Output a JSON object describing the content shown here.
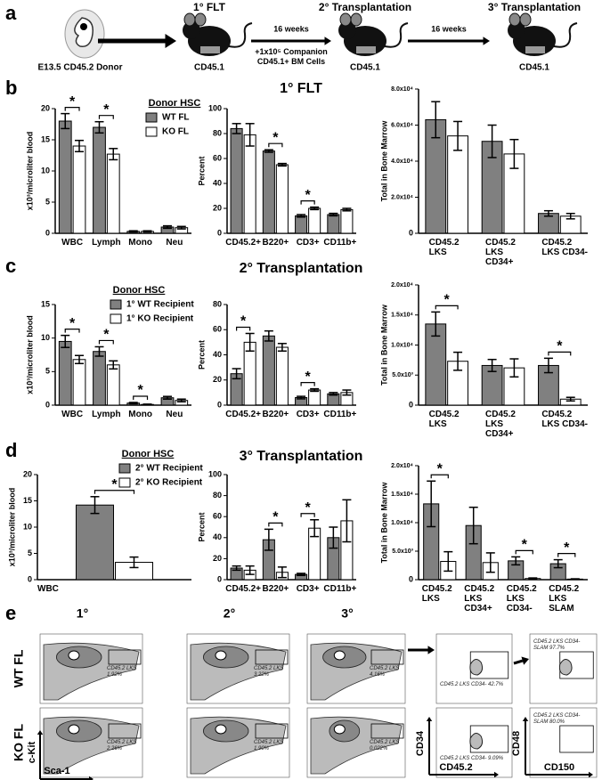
{
  "panel_a": {
    "letter": "a",
    "donor": "E13.5 CD45.2 Donor",
    "steps": [
      {
        "title": "1° FLT",
        "strain": "CD45.1"
      },
      {
        "title": "2° Transplantation",
        "strain": "CD45.1"
      },
      {
        "title": "3° Transplantation",
        "strain": "CD45.1"
      }
    ],
    "arrows": [
      {
        "above": "16 weeks",
        "below": "+1x10⁵ Companion CD45.1+ BM Cells"
      },
      {
        "above": "16 weeks"
      }
    ]
  },
  "chart_data": [
    {
      "type": "bar",
      "panel": "b",
      "legend_title": "Donor HSC",
      "ylabel": "x10³/microliter blood",
      "categories": [
        "WBC",
        "Lymph",
        "Mono",
        "Neu"
      ],
      "series": [
        {
          "name": "WT FL",
          "color": "#808080",
          "values": [
            18,
            17,
            0.3,
            1.0
          ],
          "errors": [
            1.2,
            0.9,
            0.1,
            0.2
          ]
        },
        {
          "name": "KO FL",
          "color": "#ffffff",
          "values": [
            14,
            12.7,
            0.3,
            0.9
          ],
          "errors": [
            0.9,
            0.9,
            0.1,
            0.2
          ]
        }
      ],
      "significance": [
        "*",
        "*",
        null,
        null
      ],
      "ylim": [
        0,
        20
      ],
      "yticks": [
        0,
        5,
        10,
        15,
        20
      ]
    },
    {
      "type": "bar",
      "title": "1° FLT",
      "ylabel": "Percent",
      "categories": [
        "CD45.2+",
        "B220+",
        "CD3+",
        "CD11b+"
      ],
      "series": [
        {
          "color": "#808080",
          "values": [
            84,
            66,
            14,
            15
          ],
          "errors": [
            4,
            1,
            1,
            1
          ]
        },
        {
          "color": "#ffffff",
          "values": [
            79,
            55,
            20,
            19
          ],
          "errors": [
            9,
            1,
            1,
            1
          ]
        }
      ],
      "significance": [
        null,
        "*",
        "*",
        null
      ],
      "ylim": [
        0,
        100
      ],
      "yticks": [
        0,
        20,
        40,
        60,
        80,
        100
      ]
    },
    {
      "type": "bar",
      "ylabel": "Total in Bone Marrow",
      "categories": [
        "CD45.2 LKS",
        "CD45.2 LKS CD34+",
        "CD45.2 LKS CD34-"
      ],
      "series": [
        {
          "color": "#808080",
          "values": [
            63000,
            51000,
            11000
          ],
          "errors": [
            10000,
            9000,
            1500
          ]
        },
        {
          "color": "#ffffff",
          "values": [
            54000,
            44000,
            9500
          ],
          "errors": [
            8000,
            8000,
            1500
          ]
        }
      ],
      "significance": [
        null,
        null,
        null
      ],
      "ylim": [
        0,
        80000
      ],
      "yticks": [
        0,
        {
          "value": 20000,
          "label": "2.0x10⁴"
        },
        {
          "value": 40000,
          "label": "4.0x10⁴"
        },
        {
          "value": 60000,
          "label": "6.0x10⁴"
        },
        {
          "value": 80000,
          "label": "8.0x10⁴"
        }
      ]
    },
    {
      "type": "bar",
      "panel": "c",
      "legend_title": "Donor HSC",
      "ylabel": "x10³/microliter blood",
      "categories": [
        "WBC",
        "Lymph",
        "Mono",
        "Neu"
      ],
      "series": [
        {
          "name": "1° WT Recipient",
          "color": "#808080",
          "values": [
            9.5,
            8,
            0.3,
            1.1
          ],
          "errors": [
            0.9,
            0.7,
            0.1,
            0.2
          ]
        },
        {
          "name": "1° KO Recipient",
          "color": "#ffffff",
          "values": [
            6.8,
            6,
            0.1,
            0.7
          ],
          "errors": [
            0.6,
            0.6,
            0.05,
            0.2
          ]
        }
      ],
      "significance": [
        "*",
        "*",
        "*",
        null
      ],
      "ylim": [
        0,
        15
      ],
      "yticks": [
        0,
        5,
        10,
        15
      ]
    },
    {
      "type": "bar",
      "title": "2° Transplantation",
      "ylabel": "Percent",
      "categories": [
        "CD45.2+",
        "B220+",
        "CD3+",
        "CD11b+"
      ],
      "series": [
        {
          "color": "#808080",
          "values": [
            25,
            55,
            6,
            9
          ],
          "errors": [
            4,
            4,
            1,
            1
          ]
        },
        {
          "color": "#ffffff",
          "values": [
            50,
            46,
            12,
            10
          ],
          "errors": [
            7,
            3,
            1,
            2
          ]
        }
      ],
      "significance": [
        "*",
        null,
        "*",
        null
      ],
      "ylim": [
        0,
        80
      ],
      "yticks": [
        0,
        20,
        40,
        60,
        80
      ]
    },
    {
      "type": "bar",
      "ylabel": "Total in Bone Marrow",
      "categories": [
        "CD45.2 LKS",
        "CD45.2 LKS CD34+",
        "CD45.2 LKS CD34-"
      ],
      "series": [
        {
          "color": "#808080",
          "values": [
            13500,
            6600,
            6600
          ],
          "errors": [
            2000,
            1000,
            1200
          ]
        },
        {
          "color": "#ffffff",
          "values": [
            7300,
            6200,
            1000
          ],
          "errors": [
            1500,
            1500,
            300
          ]
        }
      ],
      "significance": [
        "*",
        null,
        "*"
      ],
      "ylim": [
        0,
        20000
      ],
      "yticks": [
        0,
        {
          "value": 5000,
          "label": "5.0x10³"
        },
        {
          "value": 10000,
          "label": "1.0x10⁴"
        },
        {
          "value": 15000,
          "label": "1.5x10⁴"
        },
        {
          "value": 20000,
          "label": "2.0x10⁴"
        }
      ]
    },
    {
      "type": "bar",
      "panel": "d",
      "legend_title": "Donor HSC",
      "ylabel": "x10³/microliter blood",
      "categories": [
        "WBC"
      ],
      "series": [
        {
          "name": "2° WT Recipient",
          "color": "#808080",
          "values": [
            14.2
          ],
          "errors": [
            1.6
          ]
        },
        {
          "name": "2° KO Recipient",
          "color": "#ffffff",
          "values": [
            3.3
          ],
          "errors": [
            1
          ]
        }
      ],
      "significance": [
        "*"
      ],
      "ylim": [
        0,
        20
      ],
      "yticks": [
        0,
        5,
        10,
        15,
        20
      ]
    },
    {
      "type": "bar",
      "title": "3° Transplantation",
      "ylabel": "Percent",
      "categories": [
        "CD45.2+",
        "B220+",
        "CD3+",
        "CD11b+"
      ],
      "series": [
        {
          "color": "#808080",
          "values": [
            11,
            38,
            5,
            40
          ],
          "errors": [
            2,
            10,
            1,
            10
          ]
        },
        {
          "color": "#ffffff",
          "values": [
            9,
            7,
            49,
            56
          ],
          "errors": [
            4,
            5,
            8,
            20
          ]
        }
      ],
      "significance": [
        null,
        "*",
        "*",
        null
      ],
      "ylim": [
        0,
        100
      ],
      "yticks": [
        0,
        20,
        40,
        60,
        80,
        100
      ]
    },
    {
      "type": "bar",
      "ylabel": "Total in Bone Marrow",
      "categories": [
        "CD45.2 LKS",
        "CD45.2 LKS CD34+",
        "CD45.2 LKS CD34-",
        "CD45.2 LKS SLAM"
      ],
      "series": [
        {
          "color": "#808080",
          "values": [
            13300,
            9500,
            3300,
            2800
          ],
          "errors": [
            4000,
            3200,
            700,
            700
          ]
        },
        {
          "color": "#ffffff",
          "values": [
            3200,
            3000,
            200,
            100
          ],
          "errors": [
            1700,
            1700,
            100,
            50
          ]
        }
      ],
      "significance": [
        "*",
        null,
        "*",
        "*"
      ],
      "ylim": [
        0,
        20000
      ],
      "yticks": [
        0,
        {
          "value": 5000,
          "label": "5.0x10³"
        },
        {
          "value": 10000,
          "label": "1.0x10⁴"
        },
        {
          "value": 15000,
          "label": "1.5x10⁴"
        },
        {
          "value": 20000,
          "label": "2.0x10⁴"
        }
      ]
    }
  ],
  "panel_e": {
    "letter": "e",
    "columns": [
      "1°",
      "2°",
      "3°"
    ],
    "rows": [
      {
        "label": "WT FL",
        "gates": [
          "CD45.2 LKS 1.92%",
          "CD45.2 LKS 3.22%",
          "CD45.2 LKS 4.16%",
          "CD45.2 LKS CD34- 42.7%",
          "CD45.2 LKS CD34- SLAM 97.7%"
        ]
      },
      {
        "label": "KO FL",
        "gates": [
          "CD45.2 LKS 2.26%",
          "CD45.2 LKS 1.90%",
          "CD45.2 LKS 0.022%",
          "CD45.2 LKS CD34- 9.09%",
          "CD45.2 LKS CD34- SLAM 80.0%"
        ]
      }
    ],
    "axes": {
      "lks_y": "c-Kit",
      "lks_x": "Sca-1",
      "cd34_y": "CD34",
      "cd34_x": "CD45.2",
      "slam_y": "CD48",
      "slam_x": "CD150"
    }
  }
}
